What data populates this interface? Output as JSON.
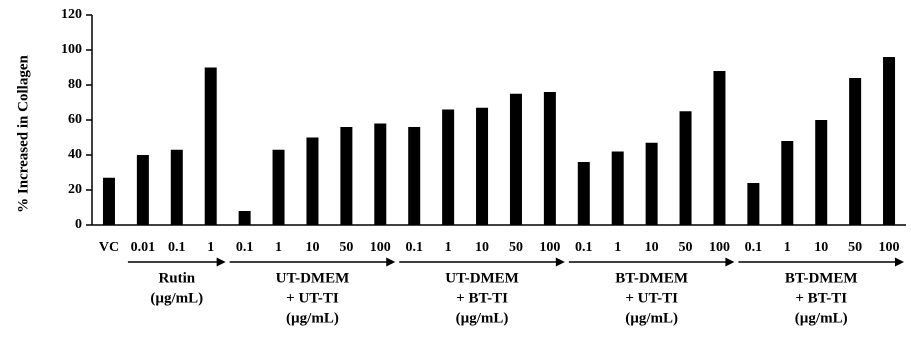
{
  "chart_data": {
    "type": "bar",
    "title": "",
    "xlabel": "",
    "ylabel": "% Increased in Collagen",
    "ylim": [
      0,
      120
    ],
    "yticks": [
      0,
      20,
      40,
      60,
      80,
      100,
      120
    ],
    "grid": false,
    "legend": "none",
    "bar_color": "#000000",
    "categories": [
      "VC",
      "0.01",
      "0.1",
      "1",
      "0.1",
      "1",
      "10",
      "50",
      "100",
      "0.1",
      "1",
      "10",
      "50",
      "100",
      "0.1",
      "1",
      "10",
      "50",
      "100",
      "0.1",
      "1",
      "10",
      "50",
      "100"
    ],
    "values": [
      27,
      40,
      43,
      90,
      8,
      43,
      50,
      56,
      58,
      56,
      66,
      67,
      75,
      76,
      36,
      42,
      47,
      65,
      88,
      24,
      48,
      60,
      84,
      96
    ],
    "groups": [
      {
        "lines": [
          "Rutin",
          "(µg/mL)"
        ],
        "start": 1,
        "end": 3
      },
      {
        "lines": [
          "UT-DMEM",
          "+ UT-TI",
          "(µg/mL)"
        ],
        "start": 4,
        "end": 8
      },
      {
        "lines": [
          "UT-DMEM",
          "+ BT-TI",
          "(µg/mL)"
        ],
        "start": 9,
        "end": 13
      },
      {
        "lines": [
          "BT-DMEM",
          "+ UT-TI",
          "(µg/mL)"
        ],
        "start": 14,
        "end": 18
      },
      {
        "lines": [
          "BT-DMEM",
          "+ BT-TI",
          "(µg/mL)"
        ],
        "start": 19,
        "end": 23
      }
    ]
  }
}
